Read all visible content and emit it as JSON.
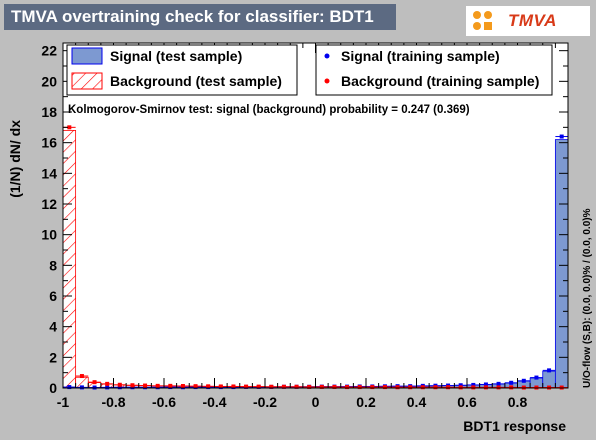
{
  "header": {
    "title": "TMVA overtraining check for classifier: BDT1",
    "logo_text": "TMVA"
  },
  "legend": {
    "signal_test": "Signal (test sample)",
    "signal_training": "Signal (training sample)",
    "background_test": "Background (test sample)",
    "background_training": "Background (training sample)"
  },
  "ks_text": "Kolmogorov-Smirnov test: signal (background) probability = 0.247 (0.369)",
  "overflow_text": "U/O-flow (S,B): (0.0, 0.0)% / (0.0, 0.0)%",
  "colors": {
    "signal_fill": "#7d99d1",
    "signal_line": "#0000ee",
    "background_line": "#ff0000",
    "frame_bg": "#ffffff",
    "title_bg": "#5c6a82"
  },
  "chart_data": {
    "type": "histogram",
    "title": "TMVA overtraining check for classifier: BDT1",
    "xlabel": "BDT1 response",
    "ylabel": "(1/N) dN/ dx",
    "xlim": [
      -1,
      1
    ],
    "ylim": [
      0,
      22.5
    ],
    "x_ticks": [
      -1,
      -0.8,
      -0.6,
      -0.4,
      -0.2,
      0,
      0.2,
      0.4,
      0.6,
      0.8
    ],
    "x_tick_labels": [
      "-1",
      "-0.8",
      "-0.6",
      "-0.4",
      "-0.2",
      "0",
      "0.2",
      "0.4",
      "0.6",
      "0.8"
    ],
    "y_ticks": [
      0,
      2,
      4,
      6,
      8,
      10,
      12,
      14,
      16,
      18,
      20,
      22
    ],
    "y_tick_labels": [
      "0",
      "2",
      "4",
      "6",
      "8",
      "10",
      "12",
      "14",
      "16",
      "18",
      "20",
      "22"
    ],
    "bin_edges_start": -1,
    "bin_width": 0.05,
    "series": [
      {
        "name": "Signal (test sample)",
        "style": "filled",
        "values": [
          0.05,
          0.03,
          0.03,
          0.04,
          0.04,
          0.05,
          0.04,
          0.05,
          0.05,
          0.05,
          0.06,
          0.05,
          0.06,
          0.06,
          0.06,
          0.06,
          0.07,
          0.07,
          0.07,
          0.08,
          0.08,
          0.08,
          0.09,
          0.09,
          0.1,
          0.11,
          0.11,
          0.12,
          0.13,
          0.14,
          0.16,
          0.17,
          0.19,
          0.22,
          0.26,
          0.32,
          0.45,
          0.65,
          1.1,
          16.2
        ]
      },
      {
        "name": "Background (test sample)",
        "style": "hatched",
        "values": [
          16.8,
          0.7,
          0.35,
          0.25,
          0.2,
          0.17,
          0.15,
          0.14,
          0.13,
          0.12,
          0.11,
          0.1,
          0.1,
          0.09,
          0.09,
          0.08,
          0.08,
          0.08,
          0.07,
          0.07,
          0.07,
          0.06,
          0.06,
          0.06,
          0.06,
          0.05,
          0.05,
          0.05,
          0.05,
          0.05,
          0.04,
          0.04,
          0.04,
          0.04,
          0.04,
          0.03,
          0.03,
          0.03,
          0.03,
          0.03
        ]
      },
      {
        "name": "Signal (training sample)",
        "style": "points",
        "values": [
          0.06,
          0.04,
          0.03,
          0.04,
          0.05,
          0.05,
          0.05,
          0.05,
          0.06,
          0.05,
          0.06,
          0.06,
          0.06,
          0.06,
          0.07,
          0.07,
          0.07,
          0.08,
          0.08,
          0.08,
          0.09,
          0.09,
          0.09,
          0.1,
          0.1,
          0.11,
          0.12,
          0.12,
          0.14,
          0.15,
          0.16,
          0.18,
          0.2,
          0.23,
          0.27,
          0.34,
          0.47,
          0.68,
          1.15,
          16.4
        ]
      },
      {
        "name": "Background (training sample)",
        "style": "points",
        "values": [
          17.0,
          0.78,
          0.38,
          0.27,
          0.21,
          0.18,
          0.16,
          0.14,
          0.14,
          0.13,
          0.12,
          0.11,
          0.1,
          0.1,
          0.09,
          0.09,
          0.08,
          0.08,
          0.08,
          0.07,
          0.07,
          0.07,
          0.06,
          0.06,
          0.06,
          0.06,
          0.05,
          0.05,
          0.05,
          0.05,
          0.05,
          0.04,
          0.04,
          0.04,
          0.04,
          0.04,
          0.03,
          0.03,
          0.03,
          0.03
        ]
      }
    ]
  }
}
